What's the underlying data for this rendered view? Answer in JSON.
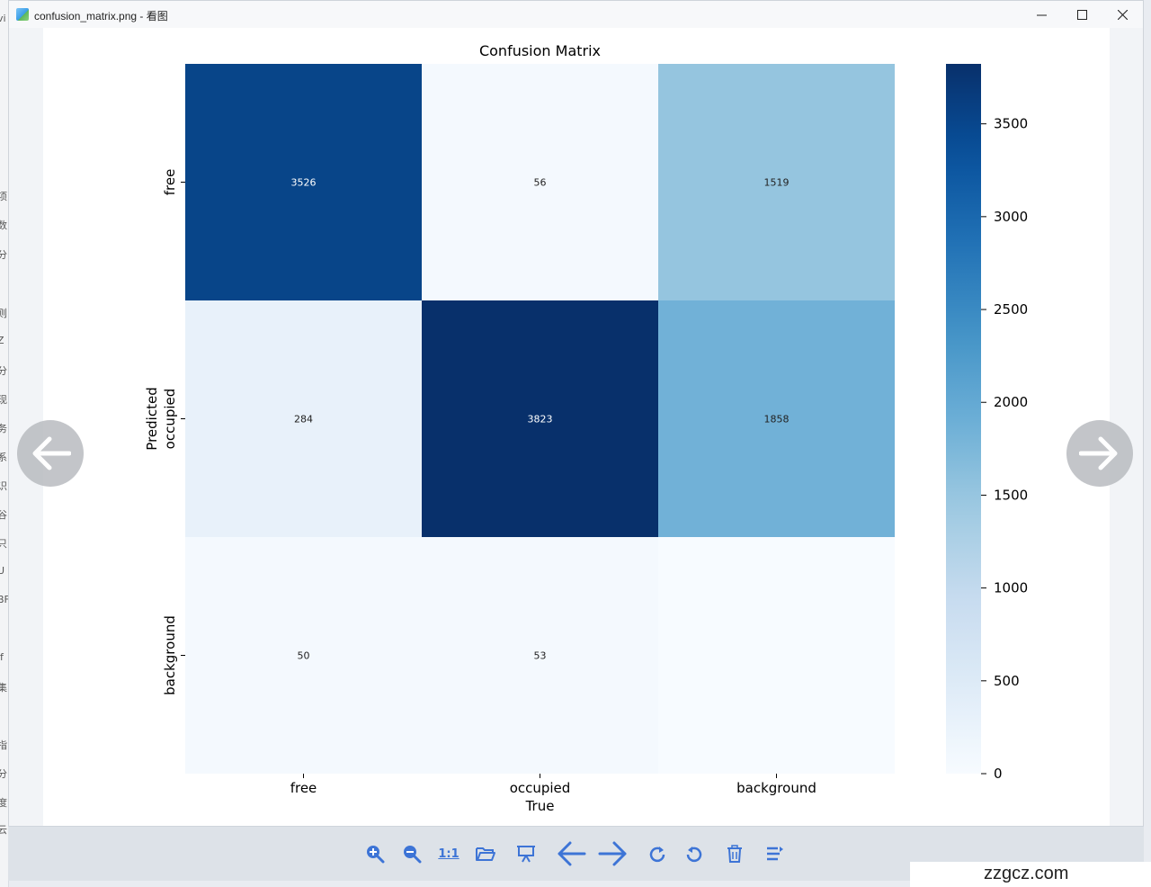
{
  "window": {
    "title": "confusion_matrix.png - 看图",
    "controls": {
      "minimize": "—",
      "maximize": "☐",
      "close": "✕"
    }
  },
  "background_app": {
    "glyphs": [
      "vi",
      "项",
      "数",
      "分",
      "则",
      "Z",
      "分",
      "现",
      "务",
      "系",
      "识",
      "谷",
      "只",
      "U",
      "BF",
      "lf",
      "集",
      "指",
      "分",
      "度",
      "云"
    ]
  },
  "navigation": {
    "prev_icon": "arrow-left-icon",
    "next_icon": "arrow-right-icon"
  },
  "toolbar": {
    "items": [
      {
        "name": "zoom-in",
        "icon": "zoom-in-icon"
      },
      {
        "name": "zoom-out",
        "icon": "zoom-out-icon"
      },
      {
        "name": "actual-size",
        "icon": "actual-size-icon",
        "label": "1:1"
      },
      {
        "name": "open-folder",
        "icon": "folder-icon"
      },
      {
        "name": "slideshow",
        "icon": "slideshow-icon"
      },
      {
        "name": "previous",
        "icon": "arrow-left-icon"
      },
      {
        "name": "next",
        "icon": "arrow-right-icon"
      },
      {
        "name": "rotate-clockwise",
        "icon": "rotate-cw-icon"
      },
      {
        "name": "rotate-counterclockwise",
        "icon": "rotate-ccw-icon"
      },
      {
        "name": "delete",
        "icon": "trash-icon"
      },
      {
        "name": "more",
        "icon": "menu-icon"
      }
    ],
    "accent": "#3d74d6"
  },
  "watermark": "zzgcz.com",
  "chart_data": {
    "type": "heatmap",
    "title": "Confusion Matrix",
    "xlabel": "True",
    "ylabel": "Predicted",
    "x_categories": [
      "free",
      "occupied",
      "background"
    ],
    "y_categories": [
      "free",
      "occupied",
      "background"
    ],
    "values": [
      [
        3526,
        56,
        1519
      ],
      [
        284,
        3823,
        1858
      ],
      [
        50,
        53,
        null
      ]
    ],
    "colormap": "Blues",
    "vmin": 0,
    "vmax": 3823,
    "colorbar_ticks": [
      0,
      500,
      1000,
      1500,
      2000,
      2500,
      3000,
      3500
    ]
  }
}
